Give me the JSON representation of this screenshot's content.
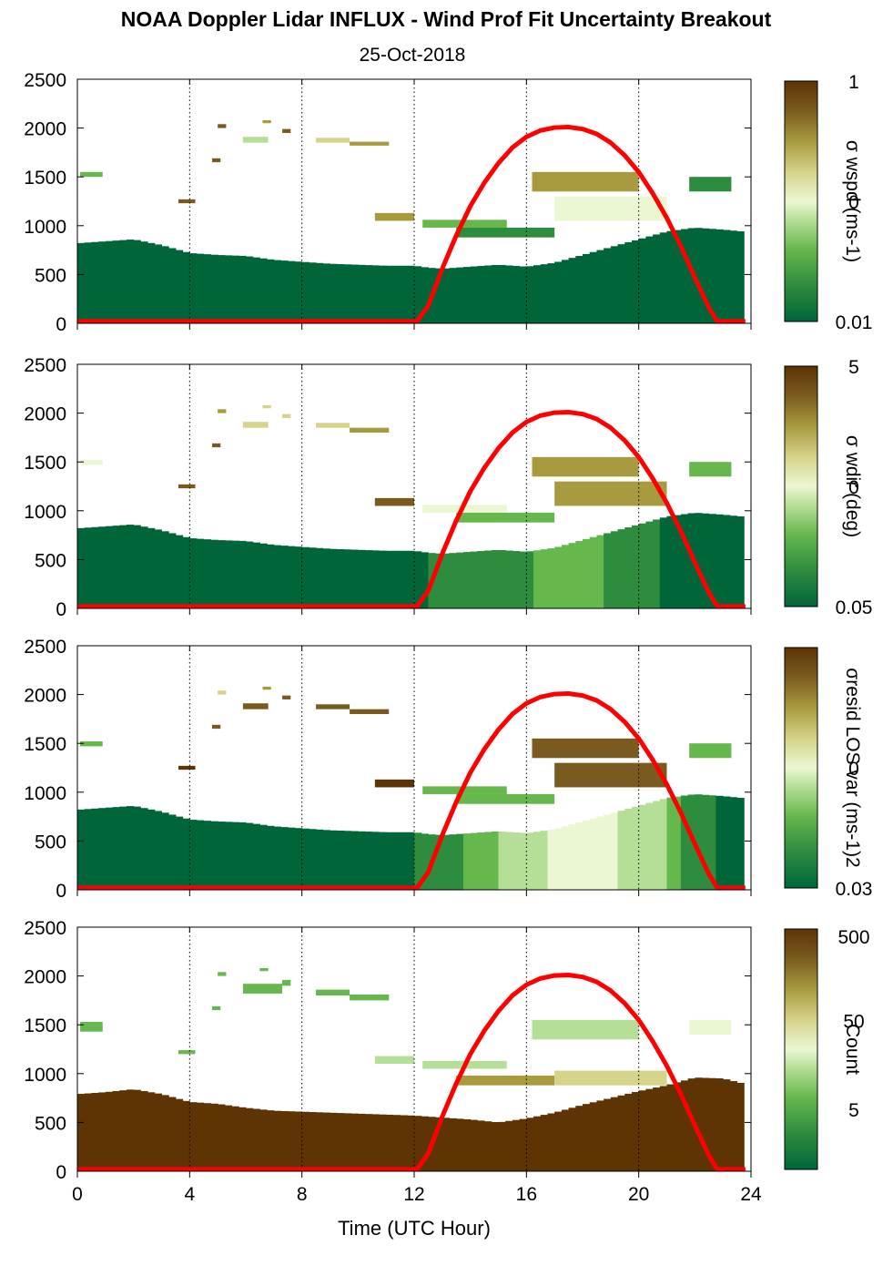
{
  "chart_data": {
    "type": "heatmap",
    "title": "NOAA Doppler Lidar INFLUX - Wind Prof Fit Uncertainty Breakout",
    "subtitle": "25-Oct-2018",
    "xlabel": "Time (UTC Hour)",
    "xlim": [
      0,
      24
    ],
    "x_ticks": [
      "0",
      "4",
      "8",
      "12",
      "16",
      "20",
      "24"
    ],
    "x_tick_values": [
      0,
      4,
      8,
      12,
      16,
      20,
      24
    ],
    "ylim": [
      0,
      2500
    ],
    "y_ticks": [
      "0",
      "500",
      "1000",
      "1500",
      "2000",
      "2500"
    ],
    "y_tick_values": [
      0,
      500,
      1000,
      1500,
      2000,
      2500
    ],
    "vertical_gridlines_hours": [
      4,
      8,
      12,
      16,
      20,
      24
    ],
    "colormap": [
      "#00663a",
      "#2e8c3f",
      "#66b84d",
      "#b5de96",
      "#eaf7d2",
      "#d6d38a",
      "#a89a3e",
      "#7a5a1e",
      "#5e3405"
    ],
    "overlay_color": "#ff0000",
    "overlay": {
      "name": "",
      "x": [
        0,
        12.1,
        12.5,
        13,
        13.5,
        14,
        14.5,
        15,
        15.5,
        16,
        16.5,
        17,
        17.5,
        18,
        18.5,
        19,
        19.5,
        20,
        20.5,
        21,
        21.5,
        22,
        22.5,
        22.8,
        23.8
      ],
      "y": [
        20,
        20,
        180,
        560,
        900,
        1200,
        1440,
        1640,
        1800,
        1910,
        1975,
        2005,
        2010,
        1990,
        1940,
        1850,
        1720,
        1550,
        1330,
        1080,
        790,
        470,
        160,
        20,
        20
      ]
    },
    "panels": [
      {
        "colorbar_label": "σ wspd (ms-1)",
        "colorbar_ticks": [
          "1",
          "0",
          "0.01"
        ],
        "colorbar_tick_positions": [
          1,
          0.5,
          0
        ],
        "boundary_layer_top": {
          "x": [
            0,
            1,
            2,
            3,
            4,
            5,
            6,
            7,
            8,
            9,
            10,
            11,
            12,
            12.5,
            13,
            14,
            15,
            16,
            17,
            18,
            19,
            20,
            21,
            22,
            23,
            23.7
          ],
          "y": [
            820,
            840,
            860,
            800,
            720,
            700,
            690,
            650,
            630,
            610,
            600,
            590,
            590,
            570,
            560,
            580,
            600,
            580,
            620,
            700,
            780,
            860,
            940,
            980,
            960,
            940
          ]
        },
        "boundary_layer_level": [
          0.0,
          0.0,
          0.0,
          0.0,
          0.0,
          0.0,
          0.0,
          0.0,
          0.0,
          0.0,
          0.0,
          0.0,
          0.0,
          0.0,
          0.0,
          0.0,
          0.0,
          0.0,
          0.0,
          0.0,
          0.0,
          0.0,
          0.0,
          0.0,
          0.0,
          0.0
        ],
        "patches": [
          {
            "x": 0.1,
            "y": 1500,
            "w": 0.8,
            "h": 50,
            "v": 0.25
          },
          {
            "x": 3.6,
            "y": 1230,
            "w": 0.6,
            "h": 40,
            "v": 0.9
          },
          {
            "x": 4.8,
            "y": 1650,
            "w": 0.3,
            "h": 40,
            "v": 0.85
          },
          {
            "x": 5.0,
            "y": 2000,
            "w": 0.3,
            "h": 40,
            "v": 0.85
          },
          {
            "x": 5.9,
            "y": 1850,
            "w": 0.9,
            "h": 60,
            "v": 0.35
          },
          {
            "x": 6.6,
            "y": 2050,
            "w": 0.3,
            "h": 30,
            "v": 0.7
          },
          {
            "x": 7.3,
            "y": 1950,
            "w": 0.3,
            "h": 40,
            "v": 0.9
          },
          {
            "x": 8.5,
            "y": 1850,
            "w": 1.2,
            "h": 50,
            "v": 0.6
          },
          {
            "x": 9.7,
            "y": 1820,
            "w": 1.4,
            "h": 40,
            "v": 0.75
          },
          {
            "x": 10.6,
            "y": 1050,
            "w": 1.4,
            "h": 80,
            "v": 0.8
          },
          {
            "x": 12.3,
            "y": 980,
            "w": 3.0,
            "h": 80,
            "v": 0.2
          },
          {
            "x": 13.5,
            "y": 880,
            "w": 3.5,
            "h": 100,
            "v": 0.15
          },
          {
            "x": 16.2,
            "y": 1350,
            "w": 3.8,
            "h": 200,
            "v": 0.7
          },
          {
            "x": 17.0,
            "y": 1050,
            "w": 4.0,
            "h": 250,
            "v": 0.5
          },
          {
            "x": 21.8,
            "y": 1350,
            "w": 1.5,
            "h": 150,
            "v": 0.1
          }
        ]
      },
      {
        "colorbar_label": "σ wdir (deg)",
        "colorbar_ticks": [
          "5",
          "0",
          "0.05"
        ],
        "colorbar_tick_positions": [
          1,
          0.5,
          0
        ],
        "boundary_layer_top": {
          "x": [
            0,
            1,
            2,
            3,
            4,
            5,
            6,
            7,
            8,
            9,
            10,
            11,
            12,
            12.5,
            13,
            14,
            15,
            16,
            17,
            18,
            19,
            20,
            21,
            22,
            23,
            23.7
          ],
          "y": [
            820,
            840,
            860,
            800,
            720,
            700,
            690,
            650,
            630,
            610,
            600,
            590,
            590,
            570,
            560,
            580,
            600,
            580,
            620,
            700,
            780,
            860,
            940,
            980,
            960,
            940
          ]
        },
        "boundary_layer_level": [
          0.0,
          0.0,
          0.0,
          0.0,
          0.0,
          0.0,
          0.0,
          0.0,
          0.0,
          0.0,
          0.0,
          0.0,
          0.0,
          0.05,
          0.1,
          0.12,
          0.15,
          0.18,
          0.2,
          0.2,
          0.18,
          0.12,
          0.05,
          0.0,
          0.0,
          0.0
        ],
        "patches": [
          {
            "x": 0.1,
            "y": 1470,
            "w": 0.8,
            "h": 50,
            "v": 0.55
          },
          {
            "x": 3.6,
            "y": 1230,
            "w": 0.6,
            "h": 40,
            "v": 0.9
          },
          {
            "x": 4.8,
            "y": 1650,
            "w": 0.3,
            "h": 40,
            "v": 0.85
          },
          {
            "x": 5.0,
            "y": 2000,
            "w": 0.3,
            "h": 40,
            "v": 0.75
          },
          {
            "x": 5.9,
            "y": 1850,
            "w": 0.9,
            "h": 60,
            "v": 0.6
          },
          {
            "x": 6.6,
            "y": 2050,
            "w": 0.3,
            "h": 30,
            "v": 0.6
          },
          {
            "x": 7.3,
            "y": 1950,
            "w": 0.3,
            "h": 40,
            "v": 0.6
          },
          {
            "x": 8.5,
            "y": 1850,
            "w": 1.2,
            "h": 50,
            "v": 0.65
          },
          {
            "x": 9.7,
            "y": 1800,
            "w": 1.4,
            "h": 50,
            "v": 0.7
          },
          {
            "x": 10.6,
            "y": 1050,
            "w": 1.4,
            "h": 80,
            "v": 0.85
          },
          {
            "x": 12.3,
            "y": 980,
            "w": 3.0,
            "h": 80,
            "v": 0.45
          },
          {
            "x": 13.5,
            "y": 880,
            "w": 3.5,
            "h": 100,
            "v": 0.3
          },
          {
            "x": 16.2,
            "y": 1350,
            "w": 3.8,
            "h": 200,
            "v": 0.8
          },
          {
            "x": 17.0,
            "y": 1050,
            "w": 4.0,
            "h": 250,
            "v": 0.7
          },
          {
            "x": 21.8,
            "y": 1350,
            "w": 1.5,
            "h": 150,
            "v": 0.3
          }
        ]
      },
      {
        "colorbar_label": "σresid LOS var (ms-1)2",
        "colorbar_ticks": [
          "0",
          "0.03"
        ],
        "colorbar_tick_positions": [
          0.5,
          0
        ],
        "boundary_layer_top": {
          "x": [
            0,
            1,
            2,
            3,
            4,
            5,
            6,
            7,
            8,
            9,
            10,
            11,
            12,
            12.5,
            13,
            14,
            15,
            16,
            17,
            18,
            19,
            20,
            21,
            22,
            23,
            23.7
          ],
          "y": [
            820,
            840,
            860,
            800,
            720,
            700,
            690,
            650,
            630,
            610,
            600,
            590,
            590,
            570,
            560,
            580,
            600,
            580,
            620,
            700,
            780,
            860,
            940,
            980,
            960,
            940
          ]
        },
        "boundary_layer_level": [
          0.0,
          0.05,
          0.05,
          0.05,
          0.05,
          0.05,
          0.05,
          0.05,
          0.05,
          0.05,
          0.05,
          0.05,
          0.05,
          0.1,
          0.15,
          0.2,
          0.3,
          0.4,
          0.45,
          0.45,
          0.45,
          0.4,
          0.3,
          0.1,
          0.05,
          0.0
        ],
        "patches": [
          {
            "x": 0.1,
            "y": 1470,
            "w": 0.8,
            "h": 50,
            "v": 0.3
          },
          {
            "x": 3.6,
            "y": 1230,
            "w": 0.6,
            "h": 40,
            "v": 0.95
          },
          {
            "x": 4.8,
            "y": 1650,
            "w": 0.3,
            "h": 40,
            "v": 0.9
          },
          {
            "x": 5.0,
            "y": 2000,
            "w": 0.3,
            "h": 40,
            "v": 0.6
          },
          {
            "x": 5.9,
            "y": 1850,
            "w": 0.9,
            "h": 60,
            "v": 0.85
          },
          {
            "x": 6.6,
            "y": 2050,
            "w": 0.3,
            "h": 30,
            "v": 0.7
          },
          {
            "x": 7.3,
            "y": 1950,
            "w": 0.3,
            "h": 40,
            "v": 0.9
          },
          {
            "x": 8.5,
            "y": 1850,
            "w": 1.2,
            "h": 50,
            "v": 0.9
          },
          {
            "x": 9.7,
            "y": 1800,
            "w": 1.4,
            "h": 50,
            "v": 0.9
          },
          {
            "x": 10.6,
            "y": 1050,
            "w": 1.4,
            "h": 80,
            "v": 0.95
          },
          {
            "x": 12.3,
            "y": 980,
            "w": 3.0,
            "h": 80,
            "v": 0.3
          },
          {
            "x": 13.5,
            "y": 880,
            "w": 3.5,
            "h": 100,
            "v": 0.2
          },
          {
            "x": 16.2,
            "y": 1350,
            "w": 3.8,
            "h": 200,
            "v": 0.85
          },
          {
            "x": 17.0,
            "y": 1050,
            "w": 4.0,
            "h": 250,
            "v": 0.85
          },
          {
            "x": 21.8,
            "y": 1350,
            "w": 1.5,
            "h": 150,
            "v": 0.2
          }
        ]
      },
      {
        "colorbar_label": "Count",
        "colorbar_ticks": [
          "500",
          "50",
          "5"
        ],
        "colorbar_tick_positions": [
          0.97,
          0.62,
          0.25
        ],
        "boundary_layer_top": {
          "x": [
            0,
            1,
            2,
            3,
            4,
            5,
            6,
            7,
            8,
            9,
            10,
            11,
            12,
            12.5,
            13,
            14,
            15,
            16,
            17,
            18,
            19,
            20,
            21,
            22,
            23,
            23.7
          ],
          "y": [
            790,
            810,
            840,
            790,
            710,
            690,
            650,
            620,
            610,
            600,
            590,
            580,
            570,
            560,
            550,
            530,
            500,
            540,
            600,
            680,
            750,
            820,
            880,
            960,
            950,
            900
          ]
        },
        "boundary_layer_level": [
          1.0,
          1.0,
          1.0,
          1.0,
          1.0,
          1.0,
          1.0,
          1.0,
          1.0,
          1.0,
          1.0,
          1.0,
          1.0,
          1.0,
          1.0,
          1.0,
          1.0,
          1.0,
          1.0,
          1.0,
          1.0,
          1.0,
          1.0,
          1.0,
          1.0,
          1.0
        ],
        "patches": [
          {
            "x": 0.1,
            "y": 1430,
            "w": 0.8,
            "h": 100,
            "v": 0.25
          },
          {
            "x": 3.6,
            "y": 1200,
            "w": 0.6,
            "h": 40,
            "v": 0.25
          },
          {
            "x": 4.8,
            "y": 1650,
            "w": 0.3,
            "h": 40,
            "v": 0.3
          },
          {
            "x": 5.0,
            "y": 2000,
            "w": 0.3,
            "h": 40,
            "v": 0.25
          },
          {
            "x": 5.9,
            "y": 1820,
            "w": 1.4,
            "h": 100,
            "v": 0.3
          },
          {
            "x": 6.5,
            "y": 2050,
            "w": 0.3,
            "h": 30,
            "v": 0.25
          },
          {
            "x": 7.3,
            "y": 1900,
            "w": 0.3,
            "h": 60,
            "v": 0.3
          },
          {
            "x": 8.5,
            "y": 1800,
            "w": 1.2,
            "h": 60,
            "v": 0.3
          },
          {
            "x": 9.7,
            "y": 1750,
            "w": 1.4,
            "h": 60,
            "v": 0.3
          },
          {
            "x": 10.6,
            "y": 1100,
            "w": 1.4,
            "h": 80,
            "v": 0.35
          },
          {
            "x": 12.3,
            "y": 1050,
            "w": 3.0,
            "h": 80,
            "v": 0.4
          },
          {
            "x": 13.5,
            "y": 880,
            "w": 3.5,
            "h": 100,
            "v": 0.75
          },
          {
            "x": 16.2,
            "y": 1350,
            "w": 3.8,
            "h": 200,
            "v": 0.35
          },
          {
            "x": 17.0,
            "y": 880,
            "w": 4.0,
            "h": 150,
            "v": 0.65
          },
          {
            "x": 21.8,
            "y": 1400,
            "w": 1.5,
            "h": 150,
            "v": 0.55
          }
        ]
      }
    ]
  }
}
